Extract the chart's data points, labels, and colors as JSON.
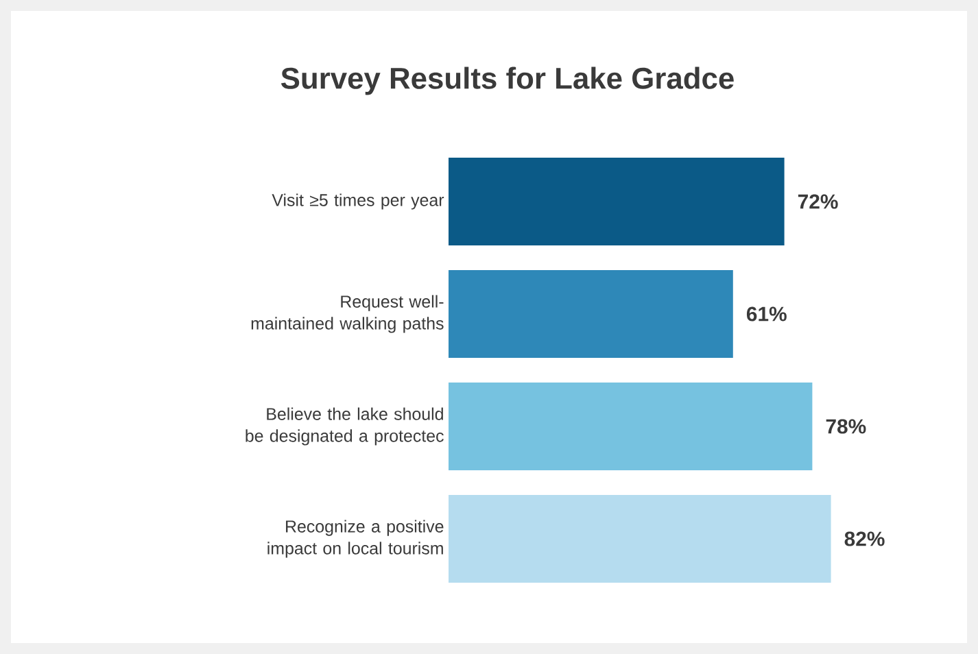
{
  "chart_data": {
    "type": "bar",
    "orientation": "horizontal",
    "title": "Survey Results for Lake Gradce",
    "categories": [
      "Visit ≥5 times per year",
      "Request well-maintained walking paths",
      "Believe the lake should be designated a protectec",
      "Recognize a positive impact on local tourism"
    ],
    "values": [
      72,
      61,
      78,
      82
    ],
    "value_labels": [
      "72%",
      "61%",
      "78%",
      "82%"
    ],
    "colors": [
      "#0b5a87",
      "#2e88b8",
      "#76c2e0",
      "#b5dcef"
    ]
  }
}
